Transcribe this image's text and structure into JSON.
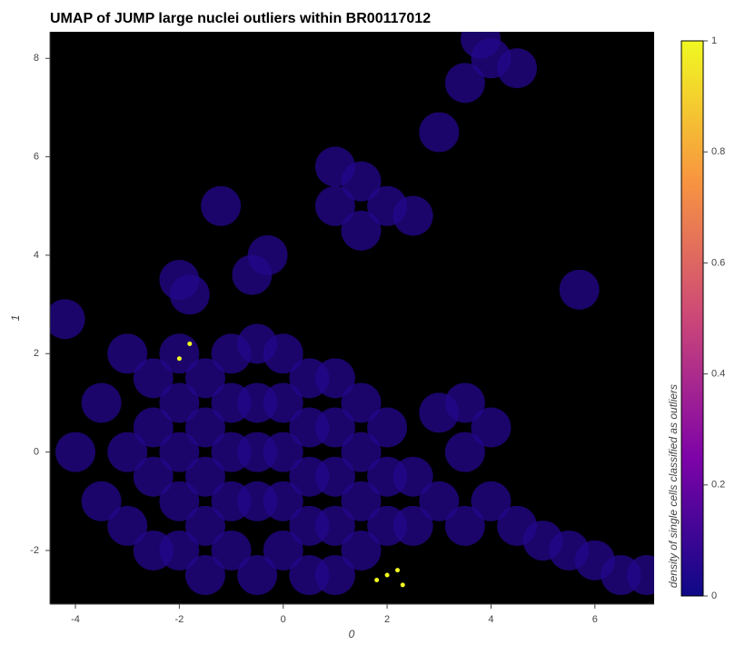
{
  "chart_data": {
    "type": "scatter",
    "title": "UMAP of JUMP large nuclei outliers within BR00117012",
    "x_label": "0",
    "y_label": "1",
    "colorbar_label": "density of single cells classified as outliers",
    "background": "#000000",
    "colormap": [
      "#0d0887",
      "#7e03a8",
      "#cc4778",
      "#f89540",
      "#f0f921"
    ],
    "clim": [
      0,
      1
    ],
    "cticks": [
      0,
      0.2,
      0.4,
      0.6,
      0.8,
      1
    ],
    "xlim": [
      -4.49,
      7.14
    ],
    "ylim": [
      -3.09,
      8.54
    ],
    "xticks": [
      -4,
      -2,
      0,
      2,
      4,
      6
    ],
    "yticks": [
      -2,
      0,
      2,
      4,
      6,
      8
    ],
    "x": [
      -4,
      -3.5,
      -3.5,
      -3,
      -3,
      -3,
      -2.5,
      -2.5,
      -2.5,
      -2.5,
      -2,
      -2,
      -2,
      -2,
      -2,
      -1.5,
      -1.5,
      -1.5,
      -1.5,
      -1.5,
      -1,
      -1,
      -1,
      -1,
      -1,
      -0.5,
      -0.5,
      -0.5,
      -0.5,
      -0.5,
      0,
      0,
      0,
      0,
      0,
      0.5,
      0.5,
      0.5,
      0.5,
      0.5,
      1,
      1,
      1,
      1,
      1,
      1.5,
      1.5,
      1.5,
      1.5,
      2,
      2,
      2,
      2.5,
      2.5,
      3,
      3,
      3.5,
      3.5,
      3.5,
      4,
      4,
      4.5,
      5,
      5.5,
      6,
      6.5,
      7,
      -4.2,
      1,
      1.5,
      2,
      1.5,
      2.5,
      1,
      -2,
      -1.8,
      -0.3,
      -0.6,
      -1.2,
      3,
      3.5,
      4,
      4.5,
      3.8,
      5.7,
      2,
      2.2,
      2.3,
      1.8,
      -1.8,
      -2
    ],
    "y": [
      0,
      1,
      -1,
      2,
      0,
      -1.5,
      1.5,
      0.5,
      -0.5,
      -2,
      2,
      1,
      0,
      -1,
      -2,
      1.5,
      0.5,
      -0.5,
      -1.5,
      -2.5,
      2,
      1,
      0,
      -1,
      -2,
      2.2,
      1,
      0,
      -1,
      -2.5,
      2,
      1,
      0,
      -1,
      -2,
      1.5,
      0.5,
      -0.5,
      -1.5,
      -2.5,
      1.5,
      0.5,
      -0.5,
      -1.5,
      -2.5,
      1,
      0,
      -1,
      -2,
      0.5,
      -0.5,
      -1.5,
      -0.5,
      -1.5,
      0.8,
      -1,
      1,
      0,
      -1.5,
      0.5,
      -1,
      -1.5,
      -1.8,
      -2,
      -2.2,
      -2.5,
      -2.5,
      2.7,
      5,
      5.5,
      5,
      4.5,
      4.8,
      5.8,
      3.5,
      3.2,
      4,
      3.6,
      5,
      6.5,
      7.5,
      8,
      7.8,
      8.4,
      3.3,
      -2.5,
      -2.4,
      -2.7,
      -2.6,
      2.2,
      1.9
    ],
    "density": [
      0.05,
      0.05,
      0.05,
      0.05,
      0.05,
      0.05,
      0.05,
      0.05,
      0.05,
      0.05,
      0.05,
      0.05,
      0.05,
      0.05,
      0.05,
      0.05,
      0.05,
      0.05,
      0.05,
      0.05,
      0.05,
      0.05,
      0.05,
      0.05,
      0.05,
      0.05,
      0.05,
      0.05,
      0.05,
      0.05,
      0.05,
      0.05,
      0.05,
      0.05,
      0.05,
      0.05,
      0.05,
      0.05,
      0.05,
      0.05,
      0.05,
      0.05,
      0.05,
      0.05,
      0.05,
      0.05,
      0.05,
      0.05,
      0.05,
      0.05,
      0.05,
      0.05,
      0.05,
      0.05,
      0.05,
      0.05,
      0.05,
      0.05,
      0.05,
      0.05,
      0.05,
      0.05,
      0.05,
      0.05,
      0.05,
      0.05,
      0.05,
      0.05,
      0.05,
      0.05,
      0.05,
      0.05,
      0.05,
      0.05,
      0.05,
      0.05,
      0.05,
      0.05,
      0.05,
      0.05,
      0.05,
      0.05,
      0.05,
      0.05,
      0.05,
      1,
      1,
      1,
      1,
      1,
      1
    ]
  }
}
